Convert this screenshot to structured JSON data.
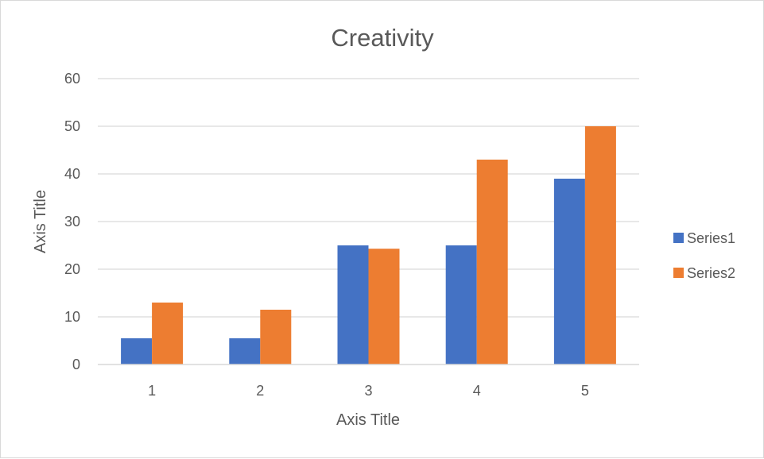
{
  "chart_data": {
    "type": "bar",
    "title": "Creativity",
    "xlabel": "Axis Title",
    "ylabel": "Axis Title",
    "categories": [
      "1",
      "2",
      "3",
      "4",
      "5"
    ],
    "series": [
      {
        "name": "Series1",
        "color": "#4472C4",
        "values": [
          5.5,
          5.5,
          25,
          25,
          39
        ]
      },
      {
        "name": "Series2",
        "color": "#ED7D31",
        "values": [
          13,
          11.5,
          24.3,
          43,
          50
        ]
      }
    ],
    "ylim": [
      0,
      60
    ],
    "yticks": [
      0,
      10,
      20,
      30,
      40,
      50,
      60
    ],
    "grid": true,
    "legend_position": "right"
  }
}
